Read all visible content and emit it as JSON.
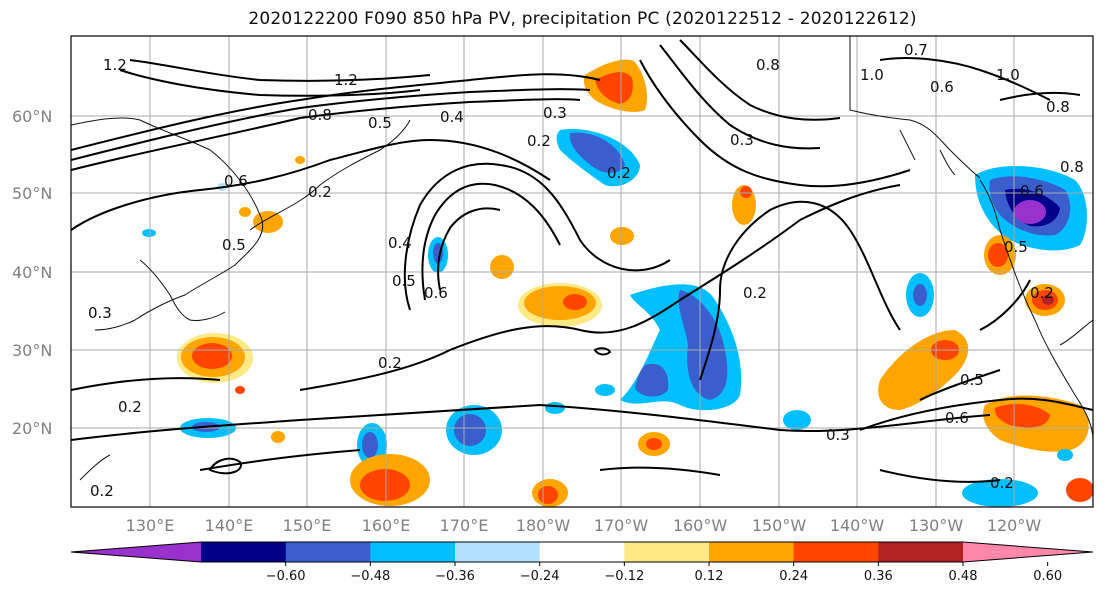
{
  "title": "2020122200 F090 850 hPa PV, precipitation PC (2020122512 - 2020122612)",
  "lat_labels": [
    "60°N",
    "50°N",
    "40°N",
    "30°N",
    "20°N"
  ],
  "lon_labels": [
    "130°E",
    "140°E",
    "150°E",
    "160°E",
    "170°E",
    "180°W",
    "170°W",
    "160°W",
    "150°W",
    "140°W",
    "130°W",
    "120°W"
  ],
  "colorbar": {
    "ticks": [
      "−0.60",
      "−0.48",
      "−0.36",
      "−0.24",
      "−0.12",
      "0.12",
      "0.24",
      "0.36",
      "0.48",
      "0.60"
    ],
    "colors": [
      "#9932cc",
      "#00008b",
      "#3a5fcd",
      "#00bfff",
      "#b0e2ff",
      "#ffffff",
      "#ffe985",
      "#ffa500",
      "#ff4500",
      "#b22222",
      "#ff88aa"
    ]
  },
  "contour_labels": [
    "1.2",
    "1.2",
    "0.8",
    "0.8",
    "0.5",
    "0.4",
    "0.3",
    "0.2",
    "0.2",
    "0.6",
    "0.2",
    "0.5",
    "0.4",
    "0.5",
    "0.6",
    "0.3",
    "0.2",
    "0.2",
    "0.2",
    "0.2",
    "0.3",
    "0.5",
    "0.6",
    "0.3",
    "0.2",
    "1.0",
    "0.7",
    "0.6",
    "0.8",
    "0.6",
    "0.5",
    "0.2",
    "0.8",
    "1.0"
  ]
}
